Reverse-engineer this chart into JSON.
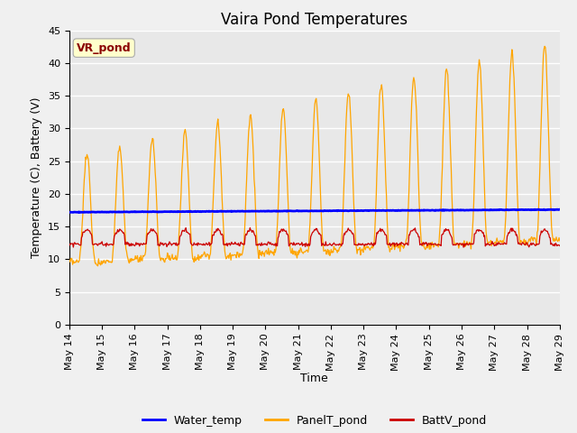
{
  "title": "Vaira Pond Temperatures",
  "xlabel": "Time",
  "ylabel": "Temperature (C), Battery (V)",
  "annotation_text": "VR_pond",
  "annotation_color": "#8B0000",
  "annotation_bg": "#FFFFCC",
  "ylim": [
    0,
    45
  ],
  "yticks": [
    0,
    5,
    10,
    15,
    20,
    25,
    30,
    35,
    40,
    45
  ],
  "xtick_labels": [
    "May 14",
    "May 15",
    "May 16",
    "May 17",
    "May 18",
    "May 19",
    "May 20",
    "May 21",
    "May 22",
    "May 23",
    "May 24",
    "May 25",
    "May 26",
    "May 27",
    "May 28",
    "May 29"
  ],
  "water_temp_color": "#0000FF",
  "panel_temp_color": "#FFA500",
  "batt_color": "#CC0000",
  "water_temp_value": 17.2,
  "bg_color": "#E8E8E8",
  "grid_color": "#FFFFFF",
  "title_fontsize": 12,
  "axis_label_fontsize": 9,
  "tick_fontsize": 8,
  "legend_fontsize": 9
}
